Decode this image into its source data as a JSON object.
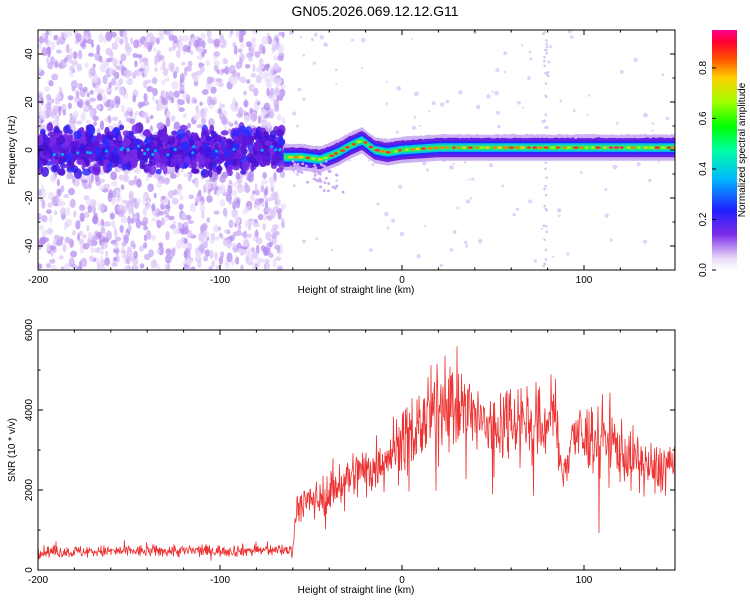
{
  "title": "GN05.2026.069.12.12.G11",
  "chart_data": [
    {
      "type": "heatmap",
      "name": "spectrogram",
      "xlabel": "Height of straight line (km)",
      "ylabel": "Frequency (Hz)",
      "xlim": [
        -200,
        150
      ],
      "ylim": [
        -50,
        50
      ],
      "xticks": [
        -200,
        -100,
        0,
        100
      ],
      "yticks": [
        -40,
        -20,
        0,
        20,
        40
      ],
      "xtick_labels": [
        "-200",
        "-100",
        "0",
        "100"
      ],
      "ytick_labels": [
        "-40",
        "-20",
        "0",
        "20",
        "40"
      ],
      "colorbar": {
        "label": "Normalized spectral amplitude",
        "range": [
          0,
          0.95
        ],
        "ticks": [
          0.0,
          0.2,
          0.4,
          0.6,
          0.8
        ],
        "tick_labels": [
          "0.0",
          "0.2",
          "0.4",
          "0.6",
          "0.8"
        ]
      },
      "noise_region_end_km": -65,
      "carrier_track": [
        {
          "x": -65,
          "y": -3
        },
        {
          "x": -55,
          "y": -3
        },
        {
          "x": -45,
          "y": -4
        },
        {
          "x": -35,
          "y": -1
        },
        {
          "x": -28,
          "y": 2
        },
        {
          "x": -22,
          "y": 4
        },
        {
          "x": -15,
          "y": 0
        },
        {
          "x": -8,
          "y": -1
        },
        {
          "x": 0,
          "y": 0
        },
        {
          "x": 20,
          "y": 1
        },
        {
          "x": 60,
          "y": 1
        },
        {
          "x": 100,
          "y": 1
        },
        {
          "x": 150,
          "y": 1
        }
      ]
    },
    {
      "type": "line",
      "name": "snr",
      "xlabel": "Height of straight line (km)",
      "ylabel": "SNR (10 * v/v)",
      "xlim": [
        -200,
        150
      ],
      "ylim": [
        0,
        6000
      ],
      "xticks": [
        -200,
        -100,
        0,
        100
      ],
      "yticks": [
        0,
        2000,
        4000,
        6000
      ],
      "xtick_labels": [
        "-200",
        "-100",
        "0",
        "100"
      ],
      "ytick_labels": [
        "0",
        "2000",
        "4000",
        "6000"
      ],
      "color": "#ee3333",
      "envelope": [
        {
          "x": -200,
          "y": 450
        },
        {
          "x": -150,
          "y": 470
        },
        {
          "x": -100,
          "y": 480
        },
        {
          "x": -60,
          "y": 500
        },
        {
          "x": -58,
          "y": 1600
        },
        {
          "x": -45,
          "y": 1800
        },
        {
          "x": -30,
          "y": 2300
        },
        {
          "x": -15,
          "y": 2600
        },
        {
          "x": 0,
          "y": 3200
        },
        {
          "x": 15,
          "y": 3800
        },
        {
          "x": 25,
          "y": 4300
        },
        {
          "x": 40,
          "y": 3800
        },
        {
          "x": 50,
          "y": 3500
        },
        {
          "x": 60,
          "y": 3900
        },
        {
          "x": 70,
          "y": 3700
        },
        {
          "x": 78,
          "y": 3500
        },
        {
          "x": 83,
          "y": 4200
        },
        {
          "x": 88,
          "y": 2200
        },
        {
          "x": 93,
          "y": 3400
        },
        {
          "x": 100,
          "y": 3300
        },
        {
          "x": 110,
          "y": 3400
        },
        {
          "x": 125,
          "y": 2800
        },
        {
          "x": 140,
          "y": 2500
        },
        {
          "x": 150,
          "y": 2700
        }
      ]
    }
  ]
}
